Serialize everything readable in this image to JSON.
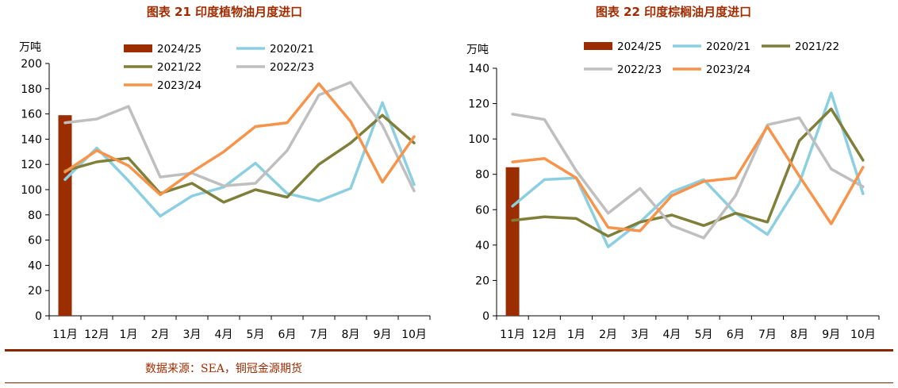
{
  "source_text": "数据来源：SEA，铜冠金源期货",
  "chart_data": [
    {
      "type": "line",
      "title": "图表 21  印度植物油月度进口",
      "ylabel": "万吨",
      "ylim": [
        0,
        200
      ],
      "yticks": [
        0,
        20,
        40,
        60,
        80,
        100,
        120,
        140,
        160,
        180,
        200
      ],
      "categories": [
        "11月",
        "12月",
        "1月",
        "2月",
        "3月",
        "4月",
        "5月",
        "6月",
        "7月",
        "8月",
        "9月",
        "10月"
      ],
      "bar": {
        "name": "2024/25",
        "color": "#9b2d00",
        "values": [
          159
        ]
      },
      "series": [
        {
          "name": "2020/21",
          "color": "#8ccfe0",
          "values": [
            108,
            133,
            107,
            79,
            95,
            102,
            121,
            97,
            91,
            101,
            169,
            104
          ]
        },
        {
          "name": "2021/22",
          "color": "#7f7f3a",
          "values": [
            115,
            122,
            125,
            97,
            105,
            90,
            100,
            94,
            120,
            137,
            159,
            137
          ]
        },
        {
          "name": "2022/23",
          "color": "#bfbfbf",
          "values": [
            153,
            156,
            166,
            110,
            113,
            103,
            105,
            131,
            175,
            185,
            151,
            99
          ]
        },
        {
          "name": "2023/24",
          "color": "#f5944a",
          "values": [
            114,
            131,
            119,
            96,
            114,
            130,
            150,
            153,
            184,
            154,
            106,
            142
          ]
        }
      ]
    },
    {
      "type": "line",
      "title": "图表 22  印度棕榈油月度进口",
      "ylabel": "万吨",
      "ylim": [
        0,
        140
      ],
      "yticks": [
        0,
        20,
        40,
        60,
        80,
        100,
        120,
        140
      ],
      "categories": [
        "11月",
        "12月",
        "1月",
        "2月",
        "3月",
        "4月",
        "5月",
        "6月",
        "7月",
        "8月",
        "9月",
        "10月"
      ],
      "bar": {
        "name": "2024/25",
        "color": "#9b2d00",
        "values": [
          84
        ]
      },
      "series": [
        {
          "name": "2020/21",
          "color": "#8ccfe0",
          "values": [
            62,
            77,
            78,
            39,
            53,
            70,
            77,
            58,
            46,
            75,
            126,
            69
          ]
        },
        {
          "name": "2021/22",
          "color": "#7f7f3a",
          "values": [
            54,
            56,
            55,
            45,
            53,
            57,
            51,
            58,
            53,
            99,
            117,
            88
          ]
        },
        {
          "name": "2022/23",
          "color": "#bfbfbf",
          "values": [
            114,
            111,
            82,
            58,
            72,
            51,
            44,
            68,
            108,
            112,
            83,
            73
          ]
        },
        {
          "name": "2023/24",
          "color": "#f5944a",
          "values": [
            87,
            89,
            78,
            50,
            48,
            68,
            76,
            78,
            107,
            79,
            52,
            84
          ]
        }
      ]
    }
  ]
}
